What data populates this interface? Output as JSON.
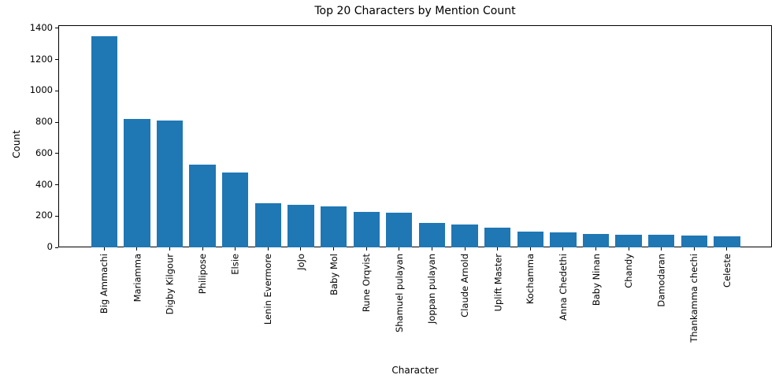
{
  "chart_data": {
    "type": "bar",
    "title": "Top 20 Characters by Mention Count",
    "xlabel": "Character",
    "ylabel": "Count",
    "categories": [
      "Big Ammachi",
      "Mariamma",
      "Digby Kilgour",
      "Philipose",
      "Elsie",
      "Lenin Evermore",
      "JoJo",
      "Baby Mol",
      "Rune Orqvist",
      "Shamuel pulayan",
      "Joppan pulayan",
      "Claude Arnold",
      "Uplift Master",
      "Kochamma",
      "Anna Chedethi",
      "Baby Ninan",
      "Chandy",
      "Damodaran",
      "Thankamma chechi",
      "Celeste"
    ],
    "values": [
      1350,
      821,
      811,
      529,
      478,
      282,
      272,
      262,
      227,
      222,
      156,
      146,
      126,
      101,
      96,
      86,
      81,
      81,
      76,
      71
    ],
    "ylim": [
      0,
      1420
    ],
    "yticks": [
      0,
      200,
      400,
      600,
      800,
      1000,
      1200,
      1400
    ],
    "xtick_rotation": 90,
    "grid": false,
    "legend": null,
    "bar_color": "#1f77b4"
  }
}
